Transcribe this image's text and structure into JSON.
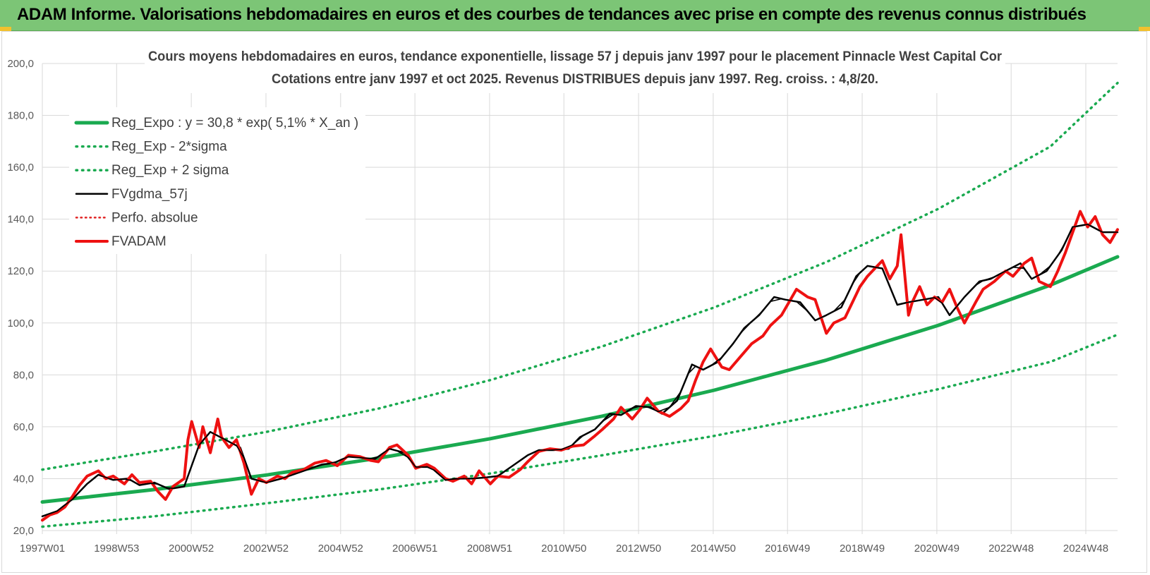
{
  "banner": {
    "title": "ADAM Informe. Valorisations hebdomadaires en euros et des courbes de tendances avec prise en compte des revenus connus distribués"
  },
  "colors": {
    "banner_bg": "#7cc576",
    "reg_expo": "#1aaa50",
    "band": "#1aaa50",
    "fvgdma": "#000000",
    "perfo": "#e02020",
    "fvadam": "#ee1111"
  },
  "chart_data": {
    "type": "line",
    "title": [
      "Cours moyens hebdomadaires en euros, tendance exponentielle, lissage 57 j depuis janv 1997 pour le placement Pinnacle West Capital Cor",
      "Cotations entre janv 1997 et oct 2025. Revenus DISTRIBUES depuis janv 1997. Reg. croiss. : 4,8/20."
    ],
    "xlabel": "",
    "ylabel": "",
    "x_range": [
      1997.0,
      2025.8
    ],
    "ylim": [
      20,
      200
    ],
    "y_ticks": [
      "20,0",
      "40,0",
      "60,0",
      "80,0",
      "100,0",
      "120,0",
      "140,0",
      "160,0",
      "180,0",
      "200,0"
    ],
    "x_ticks": [
      {
        "label": "1997W01",
        "x": 1997.0
      },
      {
        "label": "1998W53",
        "x": 1998.99
      },
      {
        "label": "2000W52",
        "x": 2000.99
      },
      {
        "label": "2002W52",
        "x": 2002.99
      },
      {
        "label": "2004W52",
        "x": 2004.99
      },
      {
        "label": "2006W51",
        "x": 2006.98
      },
      {
        "label": "2008W51",
        "x": 2008.98
      },
      {
        "label": "2010W50",
        "x": 2010.97
      },
      {
        "label": "2012W50",
        "x": 2012.97
      },
      {
        "label": "2014W50",
        "x": 2014.97
      },
      {
        "label": "2016W49",
        "x": 2016.96
      },
      {
        "label": "2018W49",
        "x": 2018.96
      },
      {
        "label": "2020W49",
        "x": 2020.96
      },
      {
        "label": "2022W48",
        "x": 2022.95
      },
      {
        "label": "2024W48",
        "x": 2024.95
      }
    ],
    "grid": true,
    "legend_position": "top-left",
    "series": [
      {
        "name": "Reg_Expo : y = 30,8 * exp( 5,1% *  X_an )",
        "style": "solid-thick",
        "x": [
          1997,
          2000,
          2003,
          2006,
          2009,
          2012,
          2015,
          2018,
          2021,
          2024,
          2025.8
        ],
        "y": [
          31.0,
          35.8,
          41.4,
          47.9,
          55.4,
          64.1,
          74.1,
          85.7,
          99.1,
          114.6,
          125.5
        ]
      },
      {
        "name": "Reg_Exp - 2*sigma",
        "style": "dotted",
        "x": [
          1997,
          2000,
          2003,
          2006,
          2009,
          2012,
          2015,
          2018,
          2021,
          2024,
          2025.8
        ],
        "y": [
          21.5,
          25.5,
          30.5,
          35.8,
          42.0,
          49.0,
          56.5,
          65.0,
          74.5,
          85.0,
          95.5
        ]
      },
      {
        "name": "Reg_Exp + 2 sigma",
        "style": "dotted",
        "x": [
          1997,
          2000,
          2003,
          2006,
          2009,
          2012,
          2015,
          2018,
          2021,
          2024,
          2025.8
        ],
        "y": [
          43.5,
          50.5,
          58.0,
          67.0,
          78.0,
          91.0,
          106.0,
          123.5,
          144.0,
          168.0,
          192.5
        ]
      },
      {
        "name": "FVgdma_57j",
        "style": "solid",
        "x": [
          1997.0,
          1997.4,
          1997.8,
          1998.2,
          1998.5,
          1998.9,
          1999.3,
          1999.6,
          2000.0,
          2000.4,
          2000.8,
          2001.2,
          2001.5,
          2001.9,
          2002.3,
          2002.6,
          2003.0,
          2003.4,
          2003.7,
          2004.1,
          2004.5,
          2004.8,
          2005.2,
          2005.6,
          2005.9,
          2006.3,
          2006.7,
          2007.0,
          2007.4,
          2007.8,
          2008.1,
          2008.5,
          2008.9,
          2009.2,
          2009.6,
          2010.0,
          2010.3,
          2010.7,
          2011.1,
          2011.4,
          2011.8,
          2012.2,
          2012.5,
          2012.9,
          2013.3,
          2013.6,
          2014.0,
          2014.4,
          2014.7,
          2015.1,
          2015.5,
          2015.8,
          2016.2,
          2016.6,
          2016.9,
          2017.3,
          2017.7,
          2018.0,
          2018.4,
          2018.8,
          2019.1,
          2019.5,
          2019.9,
          2020.2,
          2020.6,
          2021.0,
          2021.3,
          2021.7,
          2022.1,
          2022.4,
          2022.8,
          2023.2,
          2023.5,
          2023.9,
          2024.3,
          2024.6,
          2025.0,
          2025.4,
          2025.8
        ],
        "y": [
          25.5,
          27.5,
          32.0,
          38.0,
          41.5,
          39.5,
          40.0,
          37.5,
          38.5,
          36.0,
          37.0,
          53.0,
          58.0,
          55.0,
          52.0,
          40.0,
          38.5,
          40.0,
          41.5,
          43.5,
          45.5,
          46.0,
          48.5,
          48.0,
          47.5,
          51.5,
          50.0,
          44.5,
          44.5,
          39.5,
          40.0,
          40.0,
          40.5,
          41.0,
          45.0,
          49.0,
          51.0,
          51.0,
          51.5,
          56.0,
          59.0,
          65.0,
          64.5,
          68.0,
          67.5,
          65.0,
          70.0,
          84.0,
          82.0,
          85.0,
          92.0,
          98.0,
          103.0,
          110.0,
          109.0,
          108.0,
          101.0,
          103.0,
          106.0,
          118.0,
          122.0,
          121.0,
          107.0,
          108.0,
          109.0,
          110.0,
          103.0,
          110.0,
          116.0,
          117.0,
          120.0,
          123.0,
          117.0,
          120.0,
          128.0,
          137.0,
          138.0,
          135.0,
          135.0
        ]
      },
      {
        "name": "Perfo. absolue",
        "style": "dotted",
        "x": [],
        "y": []
      },
      {
        "name": "FVADAM",
        "style": "solid-thick",
        "x": [
          1997.0,
          1997.2,
          1997.4,
          1997.6,
          1997.8,
          1998.0,
          1998.2,
          1998.5,
          1998.7,
          1998.9,
          1999.2,
          1999.4,
          1999.6,
          1999.9,
          2000.1,
          2000.3,
          2000.5,
          2000.8,
          2000.9,
          2001.0,
          2001.2,
          2001.3,
          2001.5,
          2001.7,
          2001.8,
          2002.0,
          2002.2,
          2002.4,
          2002.6,
          2002.8,
          2003.0,
          2003.3,
          2003.5,
          2003.7,
          2004.0,
          2004.3,
          2004.6,
          2004.9,
          2005.2,
          2005.5,
          2005.8,
          2006.0,
          2006.3,
          2006.5,
          2006.8,
          2007.0,
          2007.3,
          2007.5,
          2007.8,
          2008.0,
          2008.3,
          2008.5,
          2008.7,
          2009.0,
          2009.2,
          2009.5,
          2009.8,
          2010.0,
          2010.3,
          2010.6,
          2010.9,
          2011.2,
          2011.5,
          2011.8,
          2012.0,
          2012.3,
          2012.5,
          2012.8,
          2013.0,
          2013.2,
          2013.5,
          2013.8,
          2014.1,
          2014.3,
          2014.5,
          2014.7,
          2014.9,
          2015.2,
          2015.4,
          2015.7,
          2016.0,
          2016.3,
          2016.5,
          2016.8,
          2017.0,
          2017.2,
          2017.5,
          2017.7,
          2018.0,
          2018.2,
          2018.5,
          2018.7,
          2018.9,
          2019.1,
          2019.3,
          2019.5,
          2019.7,
          2019.9,
          2020.0,
          2020.2,
          2020.3,
          2020.5,
          2020.7,
          2020.9,
          2021.1,
          2021.3,
          2021.5,
          2021.7,
          2022.0,
          2022.2,
          2022.5,
          2022.8,
          2023.0,
          2023.3,
          2023.5,
          2023.7,
          2024.0,
          2024.2,
          2024.4,
          2024.6,
          2024.8,
          2025.0,
          2025.2,
          2025.4,
          2025.6,
          2025.8
        ],
        "y": [
          24.0,
          26.0,
          27.0,
          29.0,
          33.0,
          37.5,
          41.0,
          43.0,
          40.0,
          41.0,
          38.0,
          41.5,
          38.5,
          39.0,
          35.0,
          32.0,
          37.0,
          40.0,
          55.0,
          62.0,
          52.0,
          60.0,
          50.0,
          63.0,
          56.0,
          52.0,
          55.0,
          46.0,
          34.0,
          40.0,
          38.5,
          41.0,
          40.0,
          42.5,
          43.5,
          46.0,
          47.0,
          45.0,
          49.0,
          48.5,
          47.0,
          46.5,
          52.0,
          53.0,
          49.0,
          44.0,
          45.5,
          44.0,
          40.0,
          39.0,
          41.0,
          38.0,
          43.0,
          38.0,
          41.0,
          40.5,
          43.5,
          46.5,
          50.5,
          51.5,
          51.0,
          52.5,
          53.0,
          56.5,
          59.0,
          63.0,
          67.5,
          63.0,
          66.5,
          71.0,
          66.0,
          64.0,
          67.0,
          70.0,
          78.0,
          85.0,
          90.0,
          83.0,
          82.0,
          87.0,
          92.0,
          95.0,
          99.0,
          103.0,
          108.0,
          113.0,
          110.0,
          109.0,
          96.0,
          100.0,
          102.0,
          108.0,
          114.0,
          118.0,
          121.0,
          124.0,
          117.0,
          122.0,
          134.0,
          103.0,
          108.0,
          114.0,
          107.0,
          110.0,
          108.0,
          113.0,
          106.0,
          100.0,
          108.0,
          113.0,
          116.0,
          120.0,
          118.0,
          123.0,
          125.0,
          116.0,
          114.0,
          120.0,
          127.0,
          135.0,
          143.0,
          137.0,
          141.0,
          134.0,
          131.0,
          136.0
        ]
      }
    ]
  }
}
